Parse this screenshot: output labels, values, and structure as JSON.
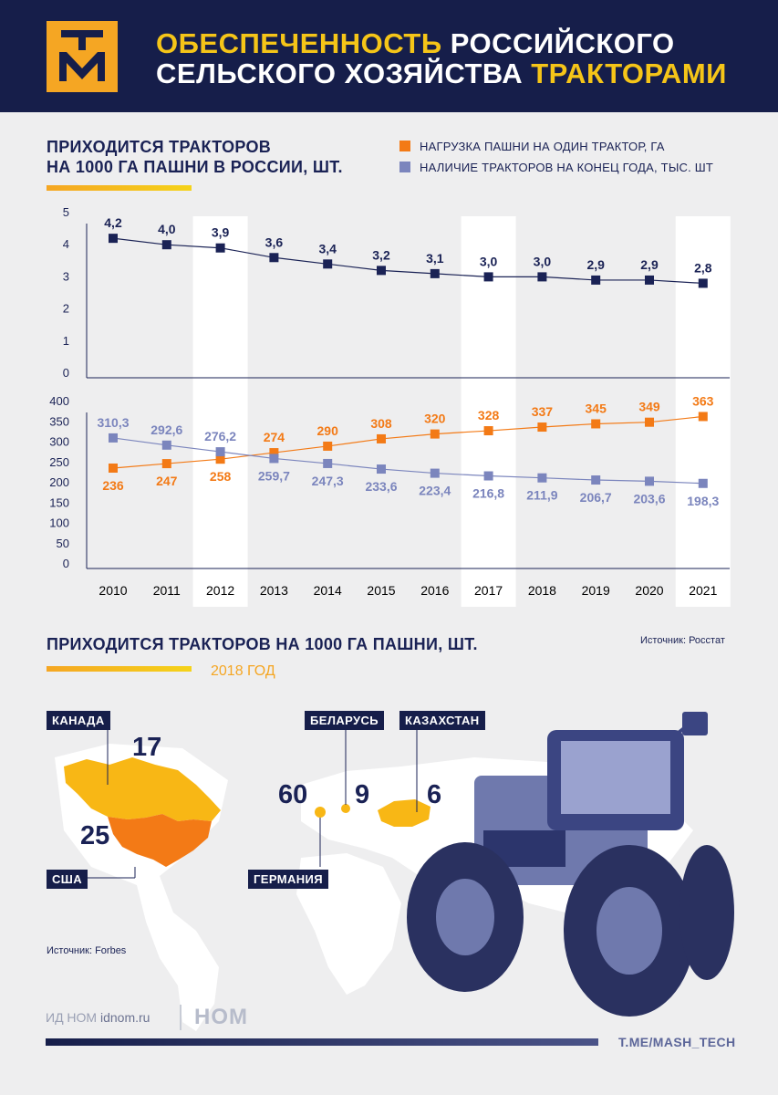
{
  "header": {
    "logo_text": "ТМ",
    "title_line1_hl": "ОБЕСПЕЧЕННОСТЬ",
    "title_line1_rest": " РОССИЙСКОГО",
    "title_line2_rest": "СЕЛЬСКОГО ХОЗЯЙСТВА ",
    "title_line2_hl": "ТРАКТОРАМИ"
  },
  "section1": {
    "title_line1": "ПРИХОДИТСЯ ТРАКТОРОВ",
    "title_line2": "НА 1000 ГА ПАШНИ В РОССИИ, ШТ.",
    "legend_orange": "НАГРУЗКА ПАШНИ НА ОДИН ТРАКТОР, ГА",
    "legend_blue": "НАЛИЧИЕ ТРАКТОРОВ НА КОНЕЦ ГОДА, ТЫС. ШТ"
  },
  "colors": {
    "navy": "#1a2255",
    "orange": "#f37a16",
    "lavender": "#7b85bd",
    "gold": "#f5a623",
    "header_bg": "#161e4a"
  },
  "chart_data": [
    {
      "type": "line",
      "title": "ПРИХОДИТСЯ ТРАКТОРОВ НА 1000 ГА ПАШНИ В РОССИИ, ШТ.",
      "x": [
        "2010",
        "2011",
        "2012",
        "2013",
        "2014",
        "2015",
        "2016",
        "2017",
        "2018",
        "2019",
        "2020",
        "2021"
      ],
      "series": [
        {
          "name": "Тракторов на 1000 га",
          "values": [
            4.2,
            4.0,
            3.9,
            3.6,
            3.4,
            3.2,
            3.1,
            3.0,
            3.0,
            2.9,
            2.9,
            2.8
          ],
          "labels": [
            "4,2",
            "4,0",
            "3,9",
            "3,6",
            "3,4",
            "3,2",
            "3,1",
            "3,0",
            "3,0",
            "2,9",
            "2,9",
            "2,8"
          ]
        }
      ],
      "yticks": [
        "0",
        "1",
        "2",
        "3",
        "4",
        "5"
      ],
      "ylim": [
        0,
        5
      ]
    },
    {
      "type": "line",
      "x": [
        "2010",
        "2011",
        "2012",
        "2013",
        "2014",
        "2015",
        "2016",
        "2017",
        "2018",
        "2019",
        "2020",
        "2021"
      ],
      "series": [
        {
          "name": "НАГРУЗКА ПАШНИ НА ОДИН ТРАКТОР, ГА",
          "values": [
            236,
            247,
            258,
            274,
            290,
            308,
            320,
            328,
            337,
            345,
            349,
            363
          ],
          "labels": [
            "236",
            "247",
            "258",
            "274",
            "290",
            "308",
            "320",
            "328",
            "337",
            "345",
            "349",
            "363"
          ]
        },
        {
          "name": "НАЛИЧИЕ ТРАКТОРОВ НА КОНЕЦ ГОДА, ТЫС. ШТ",
          "values": [
            310.3,
            292.6,
            276.2,
            259.7,
            247.3,
            233.6,
            223.4,
            216.8,
            211.9,
            206.7,
            203.6,
            198.3
          ],
          "labels": [
            "310,3",
            "292,6",
            "276,2",
            "259,7",
            "247,3",
            "233,6",
            "223,4",
            "216,8",
            "211,9",
            "206,7",
            "203,6",
            "198,3"
          ]
        }
      ],
      "yticks": [
        "0",
        "50",
        "100",
        "150",
        "200",
        "250",
        "300",
        "350",
        "400"
      ],
      "ylim": [
        0,
        400
      ],
      "highlight_years": [
        "2012",
        "2017",
        "2021"
      ]
    }
  ],
  "section2": {
    "title": "ПРИХОДИТСЯ ТРАКТОРОВ НА 1000 ГА ПАШНИ, ШТ.",
    "year": "2018 ГОД",
    "source_top": "Источник: Росстат",
    "countries": {
      "canada": {
        "name": "КАНАДА",
        "value": "17"
      },
      "usa": {
        "name": "США",
        "value": "25"
      },
      "germany": {
        "name": "ГЕРМАНИЯ",
        "value": "60"
      },
      "belarus": {
        "name": "БЕЛАРУСЬ",
        "value": "9"
      },
      "kazakhstan": {
        "name": "КАЗАХСТАН",
        "value": "6"
      }
    },
    "source_bottom": "Источник: Forbes"
  },
  "footer": {
    "left_prefix": "ИД НОМ",
    "left_site": "idnom.ru",
    "brand": "НОМ",
    "telegram": "T.ME/MASH_TECH"
  }
}
